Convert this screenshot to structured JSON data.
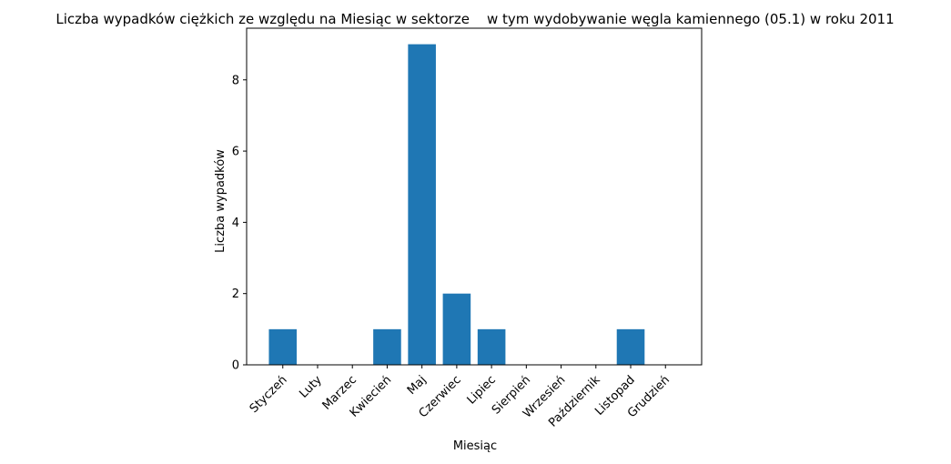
{
  "chart_data": {
    "type": "bar",
    "title": "Liczba wypadków ciężkich ze względu na Miesiąc w sektorze    w tym wydobywanie węgla kamiennego (05.1) w roku 2011",
    "xlabel": "Miesiąc",
    "ylabel": "Liczba wypadków",
    "categories": [
      "Styczeń",
      "Luty",
      "Marzec",
      "Kwiecień",
      "Maj",
      "Czerwiec",
      "Lipiec",
      "Sierpień",
      "Wrzesień",
      "Październik",
      "Listopad",
      "Grudzień"
    ],
    "values": [
      1,
      0,
      0,
      1,
      9,
      2,
      1,
      0,
      0,
      0,
      1,
      0
    ],
    "ylim": [
      0,
      9.45
    ],
    "yticks": [
      0,
      2,
      4,
      6,
      8
    ],
    "bar_color": "#1f77b4",
    "grid": false,
    "legend": "none"
  }
}
